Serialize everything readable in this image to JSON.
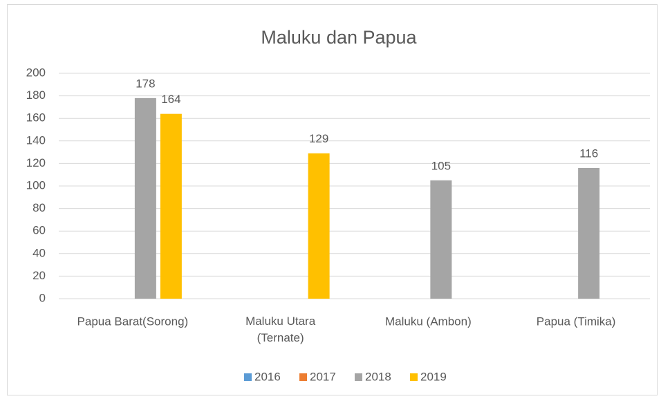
{
  "chart_data": {
    "type": "bar",
    "title": "Maluku dan Papua",
    "categories": [
      "Papua Barat(Sorong)",
      "Maluku Utara\n(Ternate)",
      "Maluku (Ambon)",
      "Papua (Timika)"
    ],
    "series": [
      {
        "name": "2016",
        "color": "#5b9bd5",
        "values": [
          null,
          null,
          null,
          null
        ]
      },
      {
        "name": "2017",
        "color": "#ed7d31",
        "values": [
          null,
          null,
          null,
          null
        ]
      },
      {
        "name": "2018",
        "color": "#a5a5a5",
        "values": [
          178,
          null,
          105,
          116
        ]
      },
      {
        "name": "2019",
        "color": "#ffc000",
        "values": [
          164,
          129,
          null,
          null
        ]
      }
    ],
    "ylim": [
      0,
      200
    ],
    "yticks": [
      0,
      20,
      40,
      60,
      80,
      100,
      120,
      140,
      160,
      180,
      200
    ],
    "grid": true,
    "legend": "bottom"
  }
}
